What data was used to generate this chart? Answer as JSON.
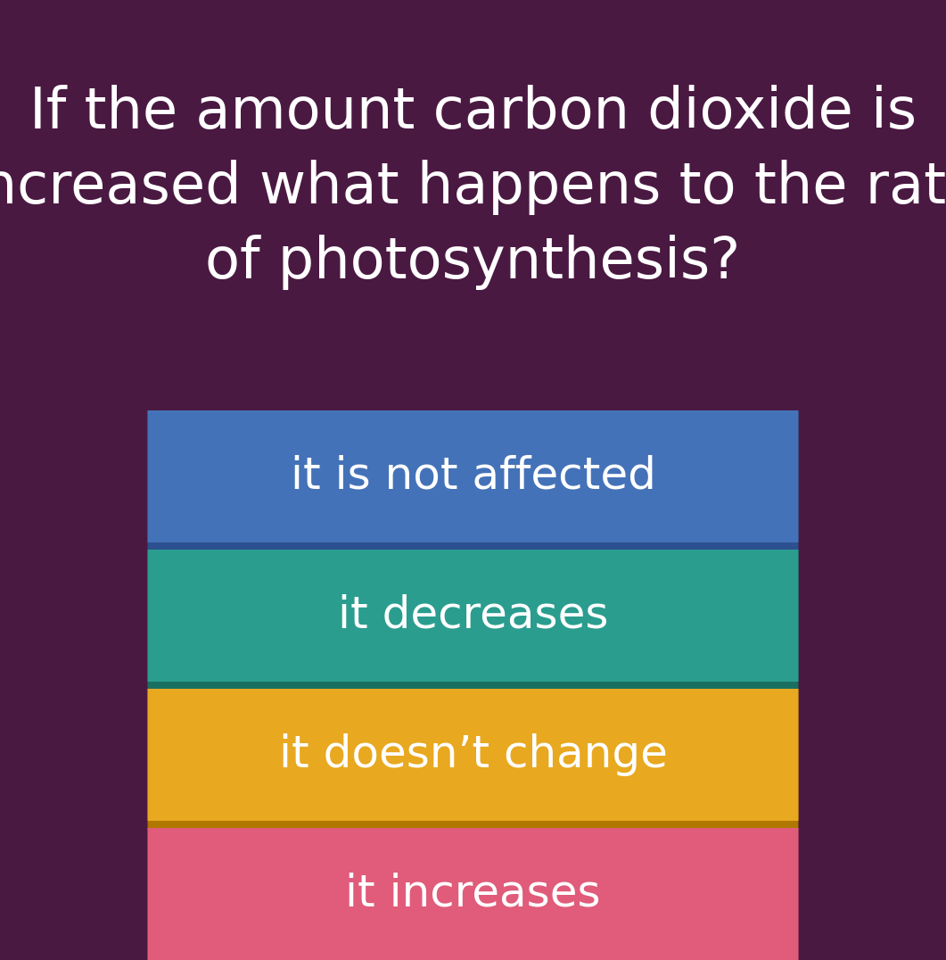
{
  "background_color": "#4a1942",
  "title": "If the amount carbon dioxide is\nincreased what happens to the rate\nof photosynthesis?",
  "title_color": "#ffffff",
  "title_fontsize": 46,
  "options": [
    "it is not affected",
    "it decreases",
    "it doesn’t change",
    "it increases"
  ],
  "option_colors": [
    "#4472b8",
    "#2a9d8f",
    "#e8a820",
    "#e05c7a"
  ],
  "option_shadow_colors": [
    "#2d5090",
    "#1a7060",
    "#b07800",
    "#a03060"
  ],
  "option_text_color": "#ffffff",
  "option_fontsize": 36,
  "fig_width": 10.61,
  "fig_height": 10.76
}
